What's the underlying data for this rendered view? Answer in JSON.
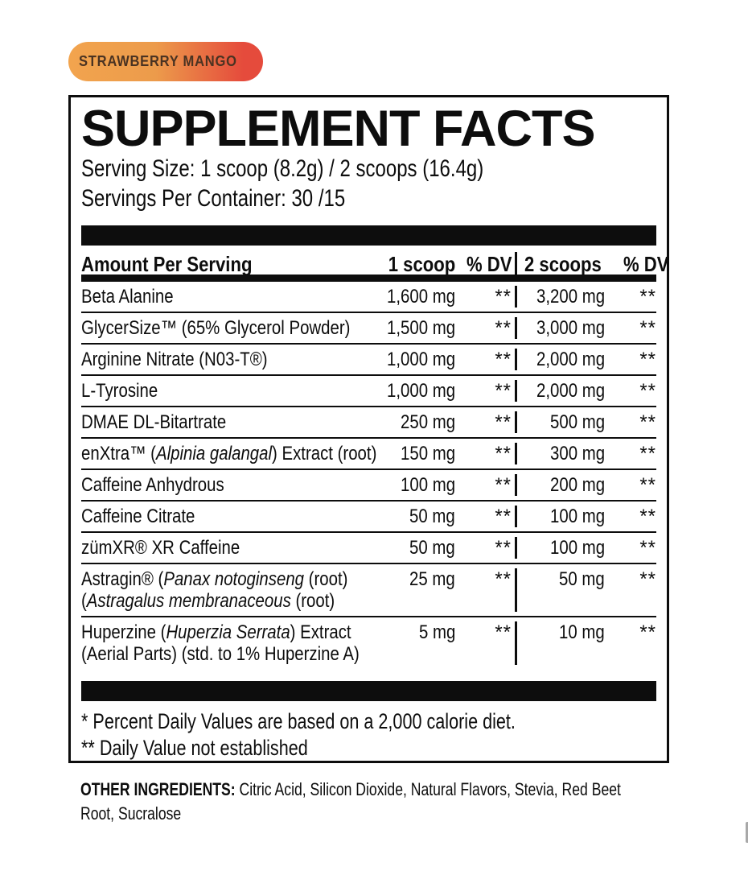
{
  "badge": {
    "label": "STRAWBERRY MANGO",
    "gradient_from": "#F2A44E",
    "gradient_mid": "#EC9B4B",
    "gradient_to": "#E54B3C"
  },
  "panel": {
    "title": "SUPPLEMENT FACTS",
    "serving_size_line": "Serving Size: 1 scoop (8.2g) / 2 scoops (16.4g)",
    "servings_per_container_line": "Servings Per Container: 30 /15",
    "table": {
      "header": {
        "amount_per_serving": "Amount Per Serving",
        "col_1scoop": "1 scoop",
        "col_dv1": "% DV",
        "col_2scoops": "2 scoops",
        "col_dv2": "% DV"
      },
      "rows": [
        {
          "lines": [
            [
              {
                "t": "Beta Alanine",
                "i": false
              }
            ]
          ],
          "amt1": "1,600 mg",
          "dv1": "**",
          "amt2": "3,200 mg",
          "dv2": "**"
        },
        {
          "lines": [
            [
              {
                "t": "GlycerSize™ (65% Glycerol Powder)",
                "i": false
              }
            ]
          ],
          "amt1": "1,500 mg",
          "dv1": "**",
          "amt2": "3,000 mg",
          "dv2": "**"
        },
        {
          "lines": [
            [
              {
                "t": "Arginine Nitrate (N03-T®)",
                "i": false
              }
            ]
          ],
          "amt1": "1,000 mg",
          "dv1": "**",
          "amt2": "2,000 mg",
          "dv2": "**"
        },
        {
          "lines": [
            [
              {
                "t": "L-Tyrosine",
                "i": false
              }
            ]
          ],
          "amt1": "1,000 mg",
          "dv1": "**",
          "amt2": "2,000 mg",
          "dv2": "**"
        },
        {
          "lines": [
            [
              {
                "t": "DMAE DL-Bitartrate",
                "i": false
              }
            ]
          ],
          "amt1": "250 mg",
          "dv1": "**",
          "amt2": "500 mg",
          "dv2": "**"
        },
        {
          "lines": [
            [
              {
                "t": "enXtra™ (",
                "i": false
              },
              {
                "t": "Alpinia galangal",
                "i": true
              },
              {
                "t": ") Extract (root)",
                "i": false
              }
            ]
          ],
          "amt1": "150 mg",
          "dv1": "**",
          "amt2": "300 mg",
          "dv2": "**"
        },
        {
          "lines": [
            [
              {
                "t": "Caffeine Anhydrous",
                "i": false
              }
            ]
          ],
          "amt1": "100 mg",
          "dv1": "**",
          "amt2": "200 mg",
          "dv2": "**"
        },
        {
          "lines": [
            [
              {
                "t": "Caffeine Citrate",
                "i": false
              }
            ]
          ],
          "amt1": "50 mg",
          "dv1": "**",
          "amt2": "100 mg",
          "dv2": "**"
        },
        {
          "lines": [
            [
              {
                "t": "zümXR® XR Caffeine",
                "i": false
              }
            ]
          ],
          "amt1": "50 mg",
          "dv1": "**",
          "amt2": "100 mg",
          "dv2": "**"
        },
        {
          "lines": [
            [
              {
                "t": "Astragin® (",
                "i": false
              },
              {
                "t": "Panax notoginseng",
                "i": true
              },
              {
                "t": " (root)",
                "i": false
              }
            ],
            [
              {
                "t": "(",
                "i": false
              },
              {
                "t": "Astragalus membranaceous",
                "i": true
              },
              {
                "t": " (root)",
                "i": false
              }
            ]
          ],
          "amt1": "25 mg",
          "dv1": "**",
          "amt2": "50 mg",
          "dv2": "**"
        },
        {
          "lines": [
            [
              {
                "t": "Huperzine (",
                "i": false
              },
              {
                "t": "Huperzia Serrata",
                "i": true
              },
              {
                "t": ") Extract",
                "i": false
              }
            ],
            [
              {
                "t": "(Aerial Parts) (std. to 1% Huperzine A)",
                "i": false
              }
            ]
          ],
          "amt1": "5 mg",
          "dv1": "**",
          "amt2": "10 mg",
          "dv2": "**"
        }
      ]
    },
    "footnotes": [
      "* Percent Daily Values are based on a 2,000 calorie diet.",
      "** Daily Value not established"
    ]
  },
  "other_ingredients": {
    "label": "OTHER INGREDIENTS:",
    "line1": " Citric Acid, Silicon Dioxide, Natural Flavors, Stevia, Red Beet",
    "line2": "Root, Sucralose"
  }
}
